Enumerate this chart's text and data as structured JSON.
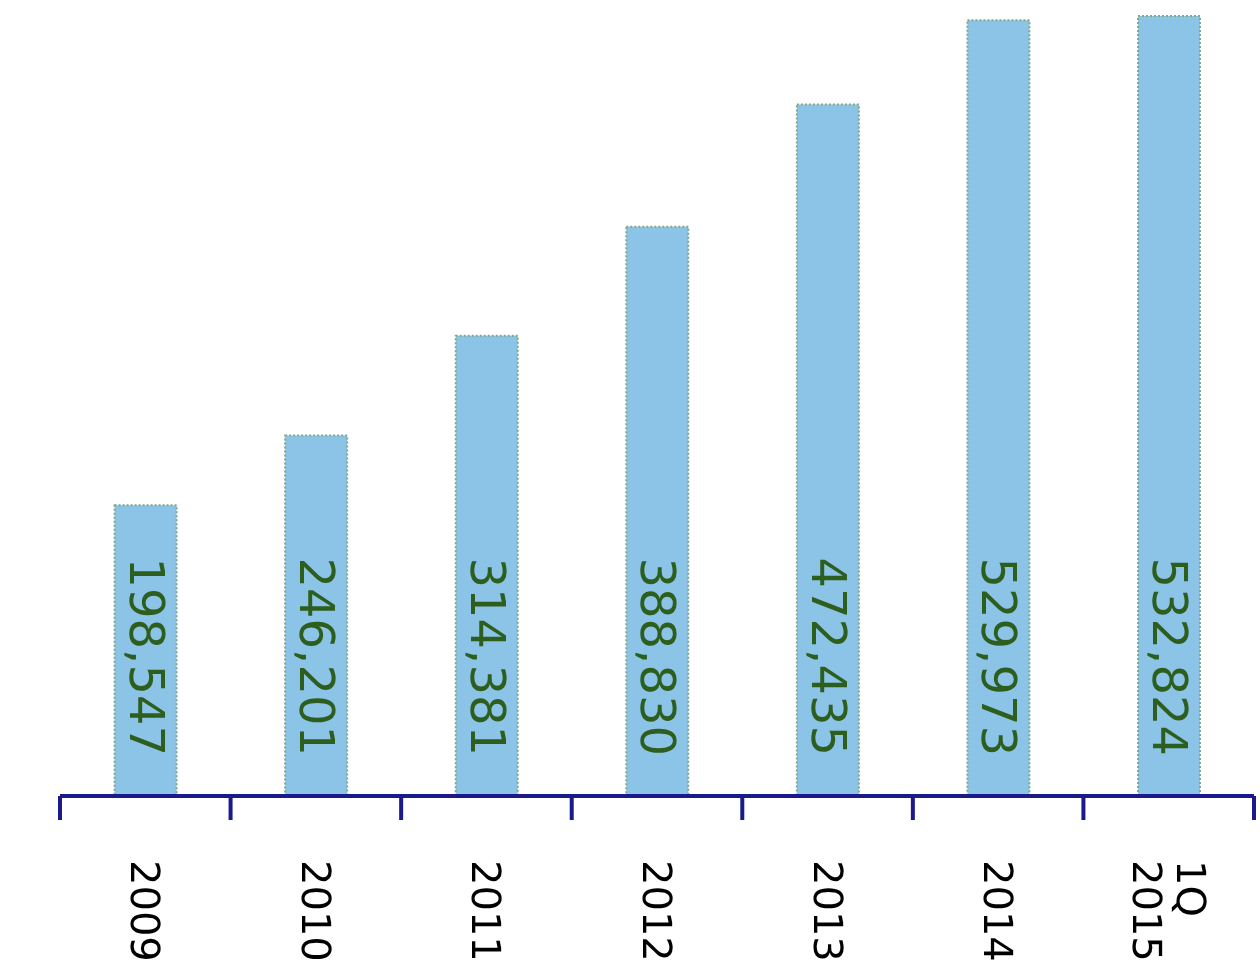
{
  "chart_data": {
    "type": "bar",
    "categories": [
      "2009",
      "2010",
      "2011",
      "2012",
      "2013",
      "2014",
      "1Q 2015"
    ],
    "values": [
      198547,
      246201,
      314381,
      388830,
      472435,
      529973,
      532824
    ],
    "value_labels": [
      "198,547",
      "246,201",
      "314,381",
      "388,830",
      "472,435",
      "529,973",
      "532,824"
    ],
    "color": "#8bc4e6",
    "grid": false,
    "legend": false
  }
}
